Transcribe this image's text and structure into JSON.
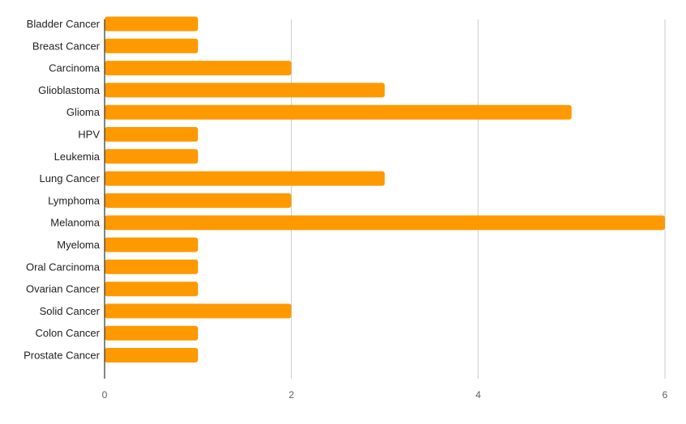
{
  "chart_data": {
    "type": "bar",
    "orientation": "horizontal",
    "title": "",
    "xlabel": "",
    "ylabel": "",
    "categories": [
      "Bladder Cancer",
      "Breast Cancer",
      "Carcinoma",
      "Glioblastoma",
      "Glioma",
      "HPV",
      "Leukemia",
      "Lung Cancer",
      "Lymphoma",
      "Melanoma",
      "Myeloma",
      "Oral Carcinoma",
      "Ovarian Cancer",
      "Solid Cancer",
      "Colon Cancer",
      "Prostate Cancer"
    ],
    "values": [
      1,
      1,
      2,
      3,
      5,
      1,
      1,
      3,
      2,
      6,
      1,
      1,
      1,
      2,
      1,
      1
    ],
    "xlim": [
      0,
      6
    ],
    "xticks": [
      "0",
      "2",
      "4",
      "6"
    ],
    "grid": true,
    "legend": "none",
    "bar_color": "#ff9900",
    "grid_color": "#cccccc",
    "axis_color": "#333333"
  }
}
